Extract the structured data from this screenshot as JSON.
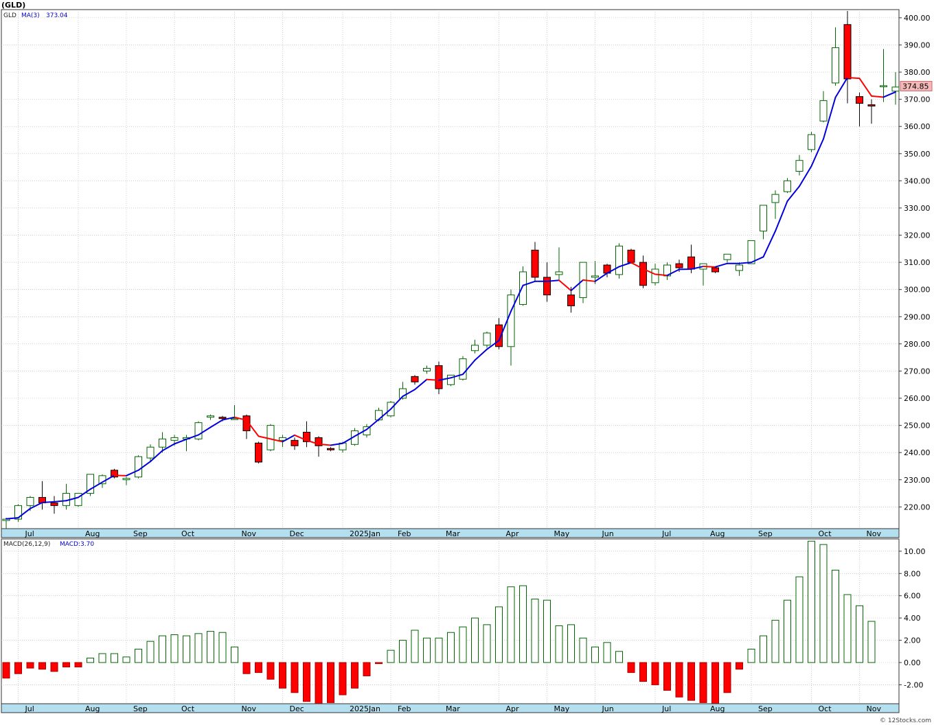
{
  "header": {
    "symbol_title": "(GLD)"
  },
  "price_panel": {
    "symbol_label": "GLD",
    "ma_label": "MA(3)",
    "ma_value": "373.04",
    "last_price_badge": "374.85",
    "y_ticks": [
      "220.00",
      "230.00",
      "240.00",
      "250.00",
      "260.00",
      "270.00",
      "280.00",
      "290.00",
      "300.00",
      "310.00",
      "320.00",
      "330.00",
      "340.00",
      "350.00",
      "360.00",
      "370.00",
      "380.00",
      "390.00",
      "400.00"
    ]
  },
  "macd_panel": {
    "label": "MACD(26,12,9)",
    "value_label": "MACD:3.70",
    "y_ticks": [
      "-2.00",
      "0.00",
      "2.00",
      "4.00",
      "6.00",
      "8.00",
      "10.00"
    ]
  },
  "x_axis": {
    "months": [
      "Jul",
      "Aug",
      "Sep",
      "Oct",
      "Nov",
      "Dec",
      "2025Jan",
      "Feb",
      "Mar",
      "Apr",
      "May",
      "Jun",
      "Jul",
      "Aug",
      "Sep",
      "Oct",
      "Nov"
    ]
  },
  "footer": {
    "watermark": "© 12Stocks.com"
  },
  "colors": {
    "up_candle_border": "#006400",
    "down_candle": "#ff0000",
    "ma_up": "#0000dd",
    "ma_down": "#ff0000",
    "axis_band": "#b4dfef",
    "grid": "#b0b0b0",
    "badge_bg": "#f4b8b8"
  },
  "chart_data": [
    {
      "type": "candlestick",
      "interval": "weekly",
      "ylim": [
        212,
        403
      ],
      "candles": [
        [
          215.0,
          216.0,
          212.0,
          215.5
        ],
        [
          215.5,
          221.0,
          214.5,
          220.5
        ],
        [
          220.5,
          224.0,
          218.5,
          223.5
        ],
        [
          223.5,
          229.5,
          219.0,
          221.5
        ],
        [
          221.5,
          224.0,
          217.5,
          220.5
        ],
        [
          220.5,
          228.5,
          219.0,
          225.0
        ],
        [
          220.5,
          225.0,
          220.0,
          225.0
        ],
        [
          225.0,
          232.0,
          224.0,
          232.0
        ],
        [
          228.5,
          232.0,
          227.0,
          231.5
        ],
        [
          233.5,
          234.0,
          230.5,
          231.0
        ],
        [
          230.0,
          231.0,
          228.0,
          230.5
        ],
        [
          231.0,
          239.0,
          230.5,
          238.5
        ],
        [
          238.0,
          243.0,
          237.0,
          242.0
        ],
        [
          242.0,
          247.5,
          240.0,
          245.0
        ],
        [
          244.5,
          246.5,
          242.5,
          245.5
        ],
        [
          245.0,
          246.5,
          240.5,
          245.5
        ],
        [
          245.0,
          251.5,
          244.5,
          251.0
        ],
        [
          253.0,
          254.0,
          252.0,
          253.5
        ],
        [
          253.0,
          253.5,
          251.5,
          252.5
        ],
        [
          252.5,
          257.5,
          252.0,
          252.5
        ],
        [
          253.5,
          254.0,
          245.0,
          248.0
        ],
        [
          243.5,
          244.0,
          236.0,
          236.5
        ],
        [
          241.0,
          250.5,
          240.5,
          250.0
        ],
        [
          244.5,
          246.5,
          242.0,
          245.5
        ],
        [
          244.5,
          245.5,
          241.0,
          242.5
        ],
        [
          247.5,
          251.5,
          242.0,
          244.0
        ],
        [
          245.5,
          246.0,
          238.5,
          242.5
        ],
        [
          241.5,
          242.0,
          240.5,
          241.0
        ],
        [
          241.0,
          244.0,
          240.0,
          243.5
        ],
        [
          243.0,
          249.0,
          242.5,
          248.0
        ],
        [
          246.5,
          250.5,
          245.5,
          249.5
        ],
        [
          252.0,
          256.5,
          251.5,
          255.5
        ],
        [
          253.5,
          259.0,
          253.0,
          258.5
        ],
        [
          260.0,
          266.0,
          259.5,
          263.5
        ],
        [
          268.0,
          268.5,
          265.0,
          266.0
        ],
        [
          270.0,
          272.0,
          269.0,
          271.0
        ],
        [
          272.0,
          273.5,
          261.5,
          263.5
        ],
        [
          265.0,
          268.5,
          264.5,
          268.5
        ],
        [
          267.0,
          275.5,
          266.5,
          274.5
        ],
        [
          277.5,
          281.5,
          276.5,
          279.5
        ],
        [
          279.5,
          284.5,
          278.5,
          284.0
        ],
        [
          287.0,
          289.5,
          278.0,
          279.0
        ],
        [
          279.0,
          300.0,
          272.0,
          298.0
        ],
        [
          294.5,
          308.5,
          294.0,
          306.5
        ],
        [
          314.5,
          317.5,
          303.0,
          304.5
        ],
        [
          304.5,
          310.0,
          295.5,
          298.0
        ],
        [
          305.5,
          315.5,
          303.5,
          306.5
        ],
        [
          298.0,
          301.0,
          291.5,
          294.0
        ],
        [
          297.0,
          310.0,
          295.0,
          310.0
        ],
        [
          304.5,
          310.5,
          302.0,
          305.0
        ],
        [
          309.0,
          309.5,
          304.5,
          306.0
        ],
        [
          305.5,
          317.0,
          304.0,
          316.0
        ],
        [
          314.5,
          315.0,
          309.5,
          310.0
        ],
        [
          310.0,
          312.5,
          300.5,
          301.5
        ],
        [
          302.5,
          309.5,
          301.5,
          307.5
        ],
        [
          305.0,
          310.0,
          303.5,
          309.0
        ],
        [
          309.5,
          311.0,
          306.5,
          308.0
        ],
        [
          312.0,
          316.5,
          306.0,
          307.5
        ],
        [
          307.5,
          309.5,
          301.5,
          309.5
        ],
        [
          308.0,
          308.5,
          306.0,
          306.5
        ],
        [
          311.0,
          313.0,
          310.0,
          313.0
        ],
        [
          307.0,
          310.0,
          305.0,
          309.0
        ],
        [
          309.5,
          318.0,
          309.5,
          318.0
        ],
        [
          321.5,
          331.0,
          318.5,
          331.0
        ],
        [
          332.0,
          336.5,
          326.0,
          335.0
        ],
        [
          336.0,
          341.0,
          335.5,
          340.0
        ],
        [
          343.5,
          349.5,
          342.0,
          347.5
        ],
        [
          351.5,
          358.0,
          350.5,
          357.0
        ],
        [
          362.0,
          373.0,
          361.5,
          369.5
        ],
        [
          376.0,
          396.5,
          375.0,
          389.0
        ],
        [
          397.5,
          402.5,
          368.5,
          377.5
        ],
        [
          371.0,
          372.5,
          360.0,
          368.5
        ],
        [
          368.0,
          370.0,
          361.0,
          367.5
        ],
        [
          375.0,
          388.5,
          369.0,
          375.0
        ],
        [
          373.0,
          380.0,
          368.0,
          374.5
        ]
      ],
      "ma3": [
        215.6,
        216.0,
        219.4,
        221.6,
        221.9,
        222.3,
        223.5,
        226.5,
        229.1,
        231.6,
        231.5,
        233.5,
        236.7,
        240.7,
        243.2,
        244.9,
        246.5,
        249.3,
        252.0,
        253.0,
        251.9,
        246.0,
        245.0,
        244.0,
        246.4,
        244.5,
        243.1,
        242.7,
        243.4,
        246.0,
        248.5,
        252.2,
        256.0,
        260.7,
        263.2,
        266.9,
        266.6,
        267.5,
        268.8,
        274.0,
        278.0,
        281.2,
        292.0,
        301.5,
        303.0,
        303.0,
        303.4,
        299.6,
        303.5,
        303.0,
        306.0,
        308.4,
        309.9,
        307.6,
        305.6,
        305.2,
        307.4,
        307.5,
        308.5,
        308.3,
        309.6,
        309.6,
        310.0,
        312.0,
        321.5,
        332.5,
        338.0,
        345.4,
        355.4,
        370.7,
        378.0,
        377.7,
        371.2,
        370.8,
        372.7
      ]
    },
    {
      "type": "bar",
      "title": "MACD(26,12,9)",
      "ylim": [
        -3.7,
        11.1
      ],
      "values": [
        -1.4,
        -1.0,
        -0.5,
        -0.6,
        -0.8,
        -0.4,
        -0.4,
        0.4,
        0.8,
        0.8,
        0.5,
        1.2,
        1.9,
        2.4,
        2.5,
        2.4,
        2.6,
        2.8,
        2.7,
        1.4,
        -1.0,
        -0.9,
        -1.5,
        -2.3,
        -2.7,
        -3.5,
        -3.7,
        -3.6,
        -2.9,
        -2.3,
        -1.2,
        -0.1,
        1.1,
        2.0,
        2.9,
        2.2,
        2.2,
        2.7,
        3.2,
        4.0,
        3.4,
        5.0,
        6.8,
        6.9,
        5.7,
        5.6,
        3.3,
        3.4,
        2.2,
        1.4,
        1.8,
        1.0,
        -0.9,
        -1.7,
        -2.0,
        -2.5,
        -3.1,
        -3.4,
        -3.6,
        -3.7,
        -2.7,
        -0.6,
        1.2,
        2.4,
        3.8,
        5.6,
        7.7,
        10.9,
        10.6,
        8.3,
        6.1,
        5.1,
        3.7
      ]
    }
  ]
}
